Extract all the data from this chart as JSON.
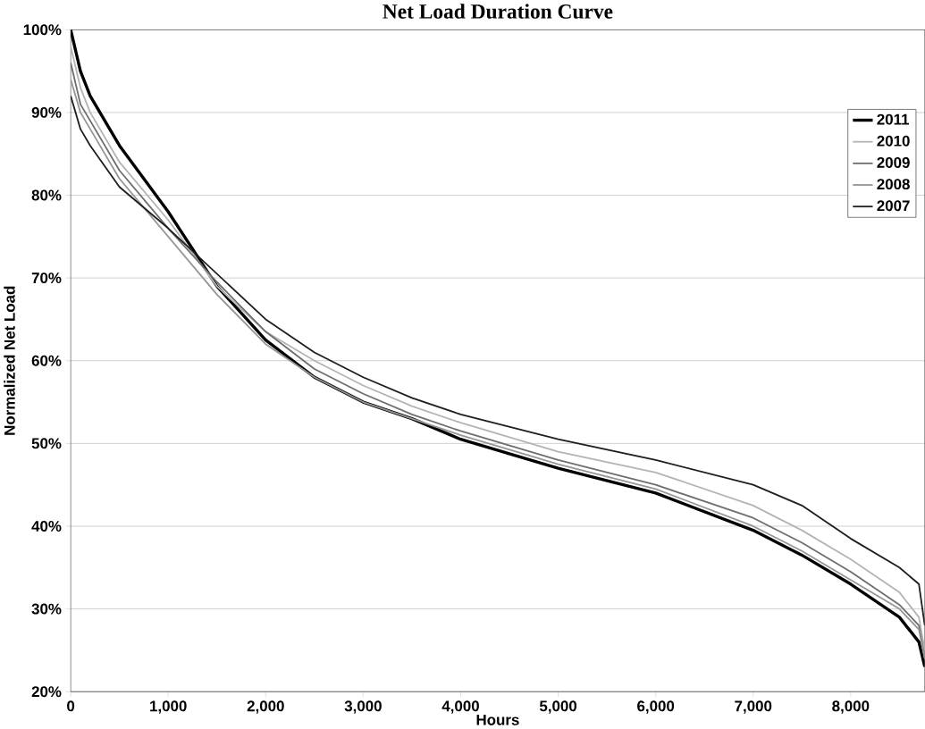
{
  "chart_data": {
    "type": "line",
    "title": "Net Load Duration Curve",
    "xlabel": "Hours",
    "ylabel": "Normalized Net Load",
    "x": [
      0,
      100,
      200,
      500,
      1000,
      1500,
      2000,
      2500,
      3000,
      3500,
      4000,
      5000,
      6000,
      7000,
      7500,
      8000,
      8500,
      8700,
      8760
    ],
    "series": [
      {
        "name": "2011",
        "color": "#000000",
        "values": [
          100,
          95,
          92,
          86,
          78,
          69,
          62.5,
          58,
          55,
          53,
          50.5,
          47,
          44,
          39.5,
          36.5,
          33,
          29,
          26,
          23
        ]
      },
      {
        "name": "2010",
        "color": "#b4b4b4",
        "values": [
          98,
          93,
          90,
          84,
          77,
          69,
          63.5,
          60,
          57,
          54.5,
          52.5,
          49,
          46.5,
          42.5,
          39.5,
          36,
          32,
          29,
          25
        ]
      },
      {
        "name": "2009",
        "color": "#6e6e6e",
        "values": [
          96,
          91,
          89,
          83,
          76,
          69.5,
          63.5,
          59,
          56,
          53.5,
          51.5,
          48,
          45,
          41,
          38,
          34.5,
          30.5,
          28,
          24
        ]
      },
      {
        "name": "2008",
        "color": "#969696",
        "values": [
          94,
          90,
          88,
          82,
          75,
          68,
          62,
          58,
          55,
          53,
          51,
          47.5,
          44.5,
          40,
          37,
          33.5,
          30,
          27.5,
          24
        ]
      },
      {
        "name": "2007",
        "color": "#1e1e1e",
        "values": [
          92,
          88,
          86,
          81,
          76,
          70.5,
          65,
          61,
          58,
          55.5,
          53.5,
          50.5,
          48,
          45,
          42.5,
          38.5,
          35,
          33,
          28
        ]
      }
    ],
    "xlim": [
      0,
      8760
    ],
    "ylim": [
      20,
      100
    ],
    "xticks": [
      0,
      {
        "value": 1000,
        "label": "1,000"
      },
      {
        "value": 2000,
        "label": "2,000"
      },
      {
        "value": 3000,
        "label": "3,000"
      },
      {
        "value": 4000,
        "label": "4,000"
      },
      {
        "value": 5000,
        "label": "5,000"
      },
      {
        "value": 6000,
        "label": "6,000"
      },
      {
        "value": 7000,
        "label": "7,000"
      },
      {
        "value": 8000,
        "label": "8,000"
      }
    ],
    "yticks": [
      {
        "value": 20,
        "label": "20%"
      },
      {
        "value": 30,
        "label": "30%"
      },
      {
        "value": 40,
        "label": "40%"
      },
      {
        "value": 50,
        "label": "50%"
      },
      {
        "value": 60,
        "label": "60%"
      },
      {
        "value": 70,
        "label": "70%"
      },
      {
        "value": 80,
        "label": "80%"
      },
      {
        "value": 90,
        "label": "90%"
      },
      {
        "value": 100,
        "label": "100%"
      }
    ],
    "grid": "y",
    "legend": "top right",
    "marker": "none",
    "line_style": "solid"
  }
}
